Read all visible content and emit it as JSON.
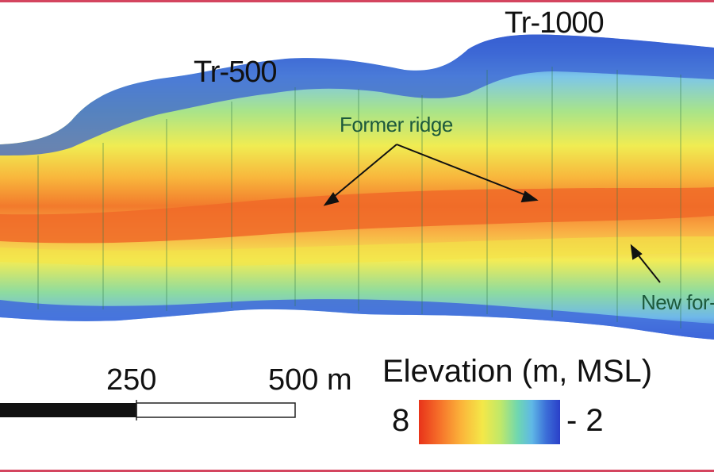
{
  "transects": {
    "tr500": "Tr-500",
    "tr1000": "Tr-1000"
  },
  "annotations": {
    "former_ridge": "Former ridge",
    "new_foredune_partial": "New for-"
  },
  "scale_bar": {
    "mid_label": "250",
    "end_label": "500 m"
  },
  "legend": {
    "title": "Elevation (m, MSL)",
    "max_label": "8",
    "min_label": "- 2",
    "ramp_colors": [
      "#e8331a",
      "#f6722a",
      "#fbb43a",
      "#f4e848",
      "#bfe86a",
      "#6fd7b0",
      "#5fb8e6",
      "#3c6fd8",
      "#2a3fc8"
    ]
  },
  "colors": {
    "frame": "#d4455f",
    "ridge": "#f06a28",
    "dune_edge": "#3b63d6"
  }
}
